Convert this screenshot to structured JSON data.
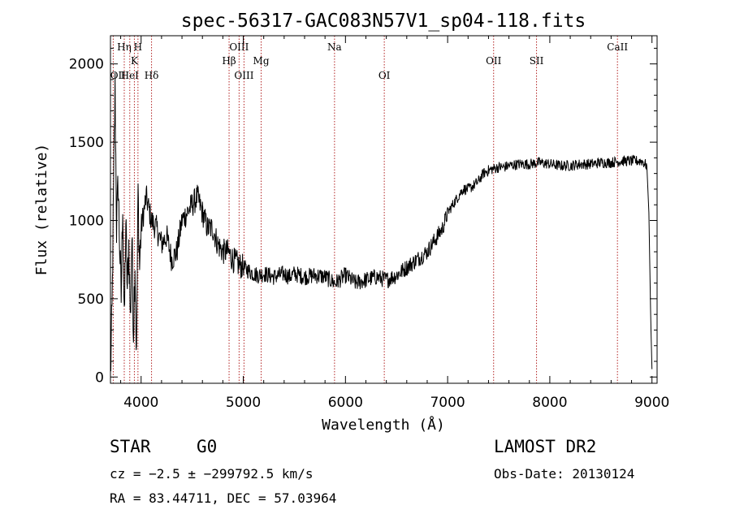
{
  "chart_data": {
    "type": "line",
    "title": "spec-56317-GAC083N57V1_sp04-118.fits",
    "xlabel": "Wavelength (Å)",
    "ylabel": "Flux (relative)",
    "xlim": [
      3700,
      9050
    ],
    "ylim": [
      -40,
      2180
    ],
    "x_ticks": [
      4000,
      5000,
      6000,
      7000,
      8000,
      9000
    ],
    "y_ticks": [
      0,
      500,
      1000,
      1500,
      2000
    ],
    "grid": false,
    "legend": "none",
    "line_color": "#000000",
    "marker_color": "#b22222",
    "series": [
      {
        "x": [
          3700,
          3715,
          3730,
          3745,
          3760,
          3775,
          3790,
          3805,
          3820,
          3835,
          3850,
          3865,
          3880,
          3895,
          3910,
          3925,
          3940,
          3955,
          3970,
          3985,
          4000,
          4050,
          4100,
          4150,
          4200,
          4250,
          4300,
          4350,
          4400,
          4450,
          4500,
          4550,
          4600,
          4650,
          4700,
          4750,
          4800,
          4850,
          4900,
          4950,
          5000,
          5050,
          5100,
          5150,
          5200,
          5250,
          5300,
          5350,
          5400,
          5450,
          5500,
          5600,
          5700,
          5800,
          5900,
          6000,
          6100,
          6200,
          6300,
          6400,
          6500,
          6600,
          6700,
          6800,
          6850,
          6900,
          6950,
          7000,
          7050,
          7100,
          7150,
          7200,
          7250,
          7300,
          7350,
          7400,
          7450,
          7500,
          7550,
          7600,
          7700,
          7800,
          7900,
          8000,
          8100,
          8200,
          8300,
          8400,
          8500,
          8600,
          8700,
          8800,
          8900,
          8950,
          8970,
          8990,
          9000
        ],
        "y": [
          0,
          400,
          1150,
          1850,
          950,
          1250,
          850,
          500,
          1150,
          300,
          1000,
          550,
          850,
          350,
          900,
          300,
          750,
          100,
          1200,
          700,
          950,
          1150,
          1000,
          950,
          850,
          900,
          750,
          800,
          1000,
          1050,
          1100,
          1150,
          1050,
          950,
          950,
          850,
          800,
          800,
          750,
          720,
          700,
          680,
          660,
          650,
          660,
          650,
          640,
          650,
          660,
          640,
          660,
          640,
          650,
          640,
          600,
          650,
          600,
          620,
          640,
          620,
          650,
          700,
          750,
          800,
          850,
          900,
          950,
          1050,
          1100,
          1150,
          1200,
          1200,
          1220,
          1250,
          1300,
          1320,
          1330,
          1340,
          1340,
          1350,
          1360,
          1360,
          1370,
          1360,
          1350,
          1350,
          1360,
          1360,
          1370,
          1370,
          1380,
          1380,
          1380,
          1350,
          1050,
          300,
          50
        ]
      }
    ],
    "line_markers": [
      {
        "x": 3727,
        "label": "OII"
      },
      {
        "x": 3835,
        "label": "Hη"
      },
      {
        "x": 3889,
        "label": "HeI"
      },
      {
        "x": 3934,
        "label": "K"
      },
      {
        "x": 3969,
        "label": "H"
      },
      {
        "x": 4102,
        "label": "Hδ"
      },
      {
        "x": 4861,
        "label": "Hβ"
      },
      {
        "x": 4959,
        "label": "OIII"
      },
      {
        "x": 5007,
        "label": "OIII"
      },
      {
        "x": 5175,
        "label": "Mg"
      },
      {
        "x": 5893,
        "label": "Na"
      },
      {
        "x": 6380,
        "label": "OI"
      },
      {
        "x": 7450,
        "label": "OII"
      },
      {
        "x": 7870,
        "label": "SII"
      },
      {
        "x": 8662,
        "label": "CaII"
      }
    ]
  },
  "info": {
    "class_label": "STAR",
    "subclass": "G0",
    "survey": "LAMOST DR2",
    "cz": "cz = −2.5 ± −299792.5 km/s",
    "obs_date": "Obs-Date: 20130124",
    "radec": "RA =  83.44711, DEC =  57.03964"
  }
}
